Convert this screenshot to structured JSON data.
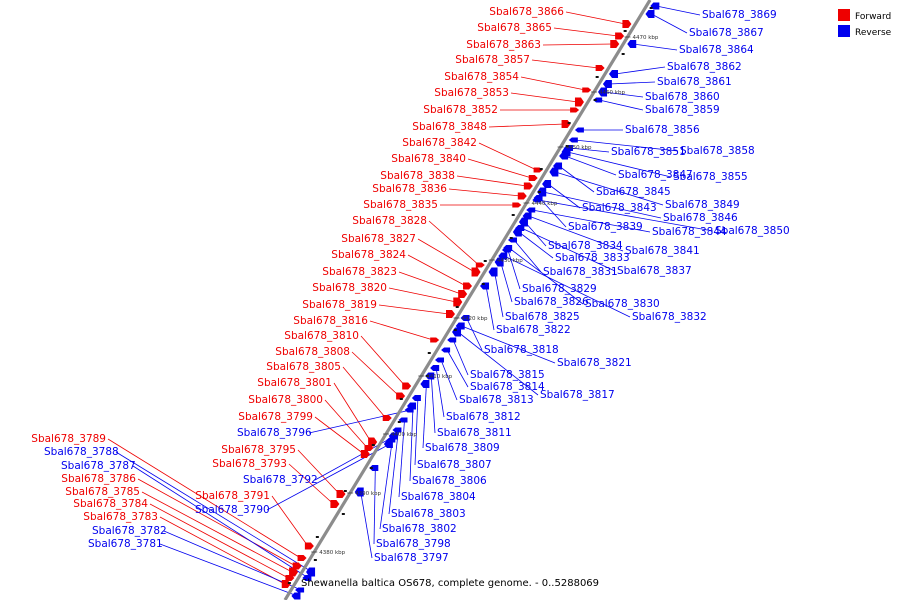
{
  "title": "Shewanella baltica OS678, complete genome. - 0..5288069",
  "legend": [
    {
      "label": "Forward",
      "color": "#ee0000"
    },
    {
      "label": "Reverse",
      "color": "#0000ee"
    }
  ],
  "axis": {
    "color": "#8c8c8c"
  },
  "ticks": [
    "4380 kbp",
    "4390 kbp",
    "4400 kbp",
    "4410 kbp",
    "4420 kbp",
    "4430 kbp",
    "4440 kbp",
    "4450 kbp",
    "4460 kbp",
    "4470 kbp"
  ],
  "forward_labels": [
    "Sbal678_3866",
    "Sbal678_3865",
    "Sbal678_3863",
    "Sbal678_3857",
    "Sbal678_3854",
    "Sbal678_3853",
    "Sbal678_3852",
    "Sbal678_3848",
    "Sbal678_3842",
    "Sbal678_3840",
    "Sbal678_3838",
    "Sbal678_3836",
    "Sbal678_3835",
    "Sbal678_3828",
    "Sbal678_3827",
    "Sbal678_3824",
    "Sbal678_3823",
    "Sbal678_3820",
    "Sbal678_3819",
    "Sbal678_3816",
    "Sbal678_3810",
    "Sbal678_3808",
    "Sbal678_3805",
    "Sbal678_3801",
    "Sbal678_3800",
    "Sbal678_3799",
    "Sbal678_3795",
    "Sbal678_3793",
    "Sbal678_3791",
    "Sbal678_3789",
    "Sbal678_3786",
    "Sbal678_3785",
    "Sbal678_3784",
    "Sbal678_3783"
  ],
  "reverse_labels": [
    "Sbal678_3869",
    "Sbal678_3867",
    "Sbal678_3864",
    "Sbal678_3862",
    "Sbal678_3861",
    "Sbal678_3860",
    "Sbal678_3859",
    "Sbal678_3856",
    "Sbal678_3851",
    "Sbal678_3858",
    "Sbal678_3847",
    "Sbal678_3855",
    "Sbal678_3845",
    "Sbal678_3849",
    "Sbal678_3843",
    "Sbal678_3846",
    "Sbal678_3839",
    "Sbal678_3844",
    "Sbal678_3850",
    "Sbal678_3834",
    "Sbal678_3841",
    "Sbal678_3833",
    "Sbal678_3831",
    "Sbal678_3837",
    "Sbal678_3829",
    "Sbal678_3826",
    "Sbal678_3830",
    "Sbal678_3825",
    "Sbal678_3832",
    "Sbal678_3822",
    "Sbal678_3818",
    "Sbal678_3821",
    "Sbal678_3815",
    "Sbal678_3814",
    "Sbal678_3817",
    "Sbal678_3813",
    "Sbal678_3812",
    "Sbal678_3811",
    "Sbal678_3809",
    "Sbal678_3796",
    "Sbal678_3807",
    "Sbal678_3806",
    "Sbal678_3804",
    "Sbal678_3792",
    "Sbal678_3790",
    "Sbal678_3803",
    "Sbal678_3802",
    "Sbal678_3798",
    "Sbal678_3797",
    "Sbal678_3788",
    "Sbal678_3787",
    "Sbal678_3782",
    "Sbal678_3781"
  ]
}
